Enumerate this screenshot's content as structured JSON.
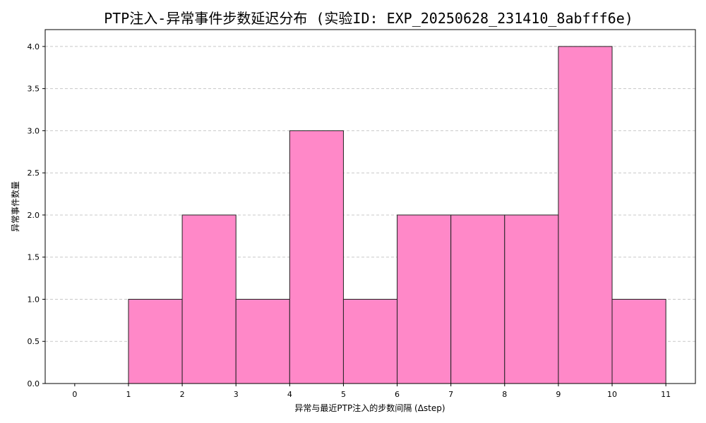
{
  "chart_data": {
    "type": "bar",
    "title": "PTP注入-异常事件步数延迟分布 (实验ID: EXP_20250628_231410_8abfff6e)",
    "xlabel": "异常与最近PTP注入的步数间隔 (Δstep)",
    "ylabel": "异常事件数量",
    "bins": [
      {
        "start": 0,
        "end": 1,
        "count": 0
      },
      {
        "start": 1,
        "end": 2,
        "count": 1
      },
      {
        "start": 2,
        "end": 3,
        "count": 2
      },
      {
        "start": 3,
        "end": 4,
        "count": 1
      },
      {
        "start": 4,
        "end": 5,
        "count": 3
      },
      {
        "start": 5,
        "end": 6,
        "count": 1
      },
      {
        "start": 6,
        "end": 7,
        "count": 2
      },
      {
        "start": 7,
        "end": 8,
        "count": 2
      },
      {
        "start": 8,
        "end": 9,
        "count": 2
      },
      {
        "start": 9,
        "end": 10,
        "count": 4
      },
      {
        "start": 10,
        "end": 11,
        "count": 1
      }
    ],
    "x_ticks": [
      0,
      1,
      2,
      3,
      4,
      5,
      6,
      7,
      8,
      9,
      10,
      11
    ],
    "y_ticks": [
      "0.0",
      "0.5",
      "1.0",
      "1.5",
      "2.0",
      "2.5",
      "3.0",
      "3.5",
      "4.0"
    ],
    "xlim": [
      -0.55,
      11.55
    ],
    "ylim": [
      0,
      4.2
    ],
    "grid": "y-dashed",
    "bar_color": "#ff88c8",
    "edge_color": "#222222",
    "grid_color": "#c8c8c8"
  }
}
